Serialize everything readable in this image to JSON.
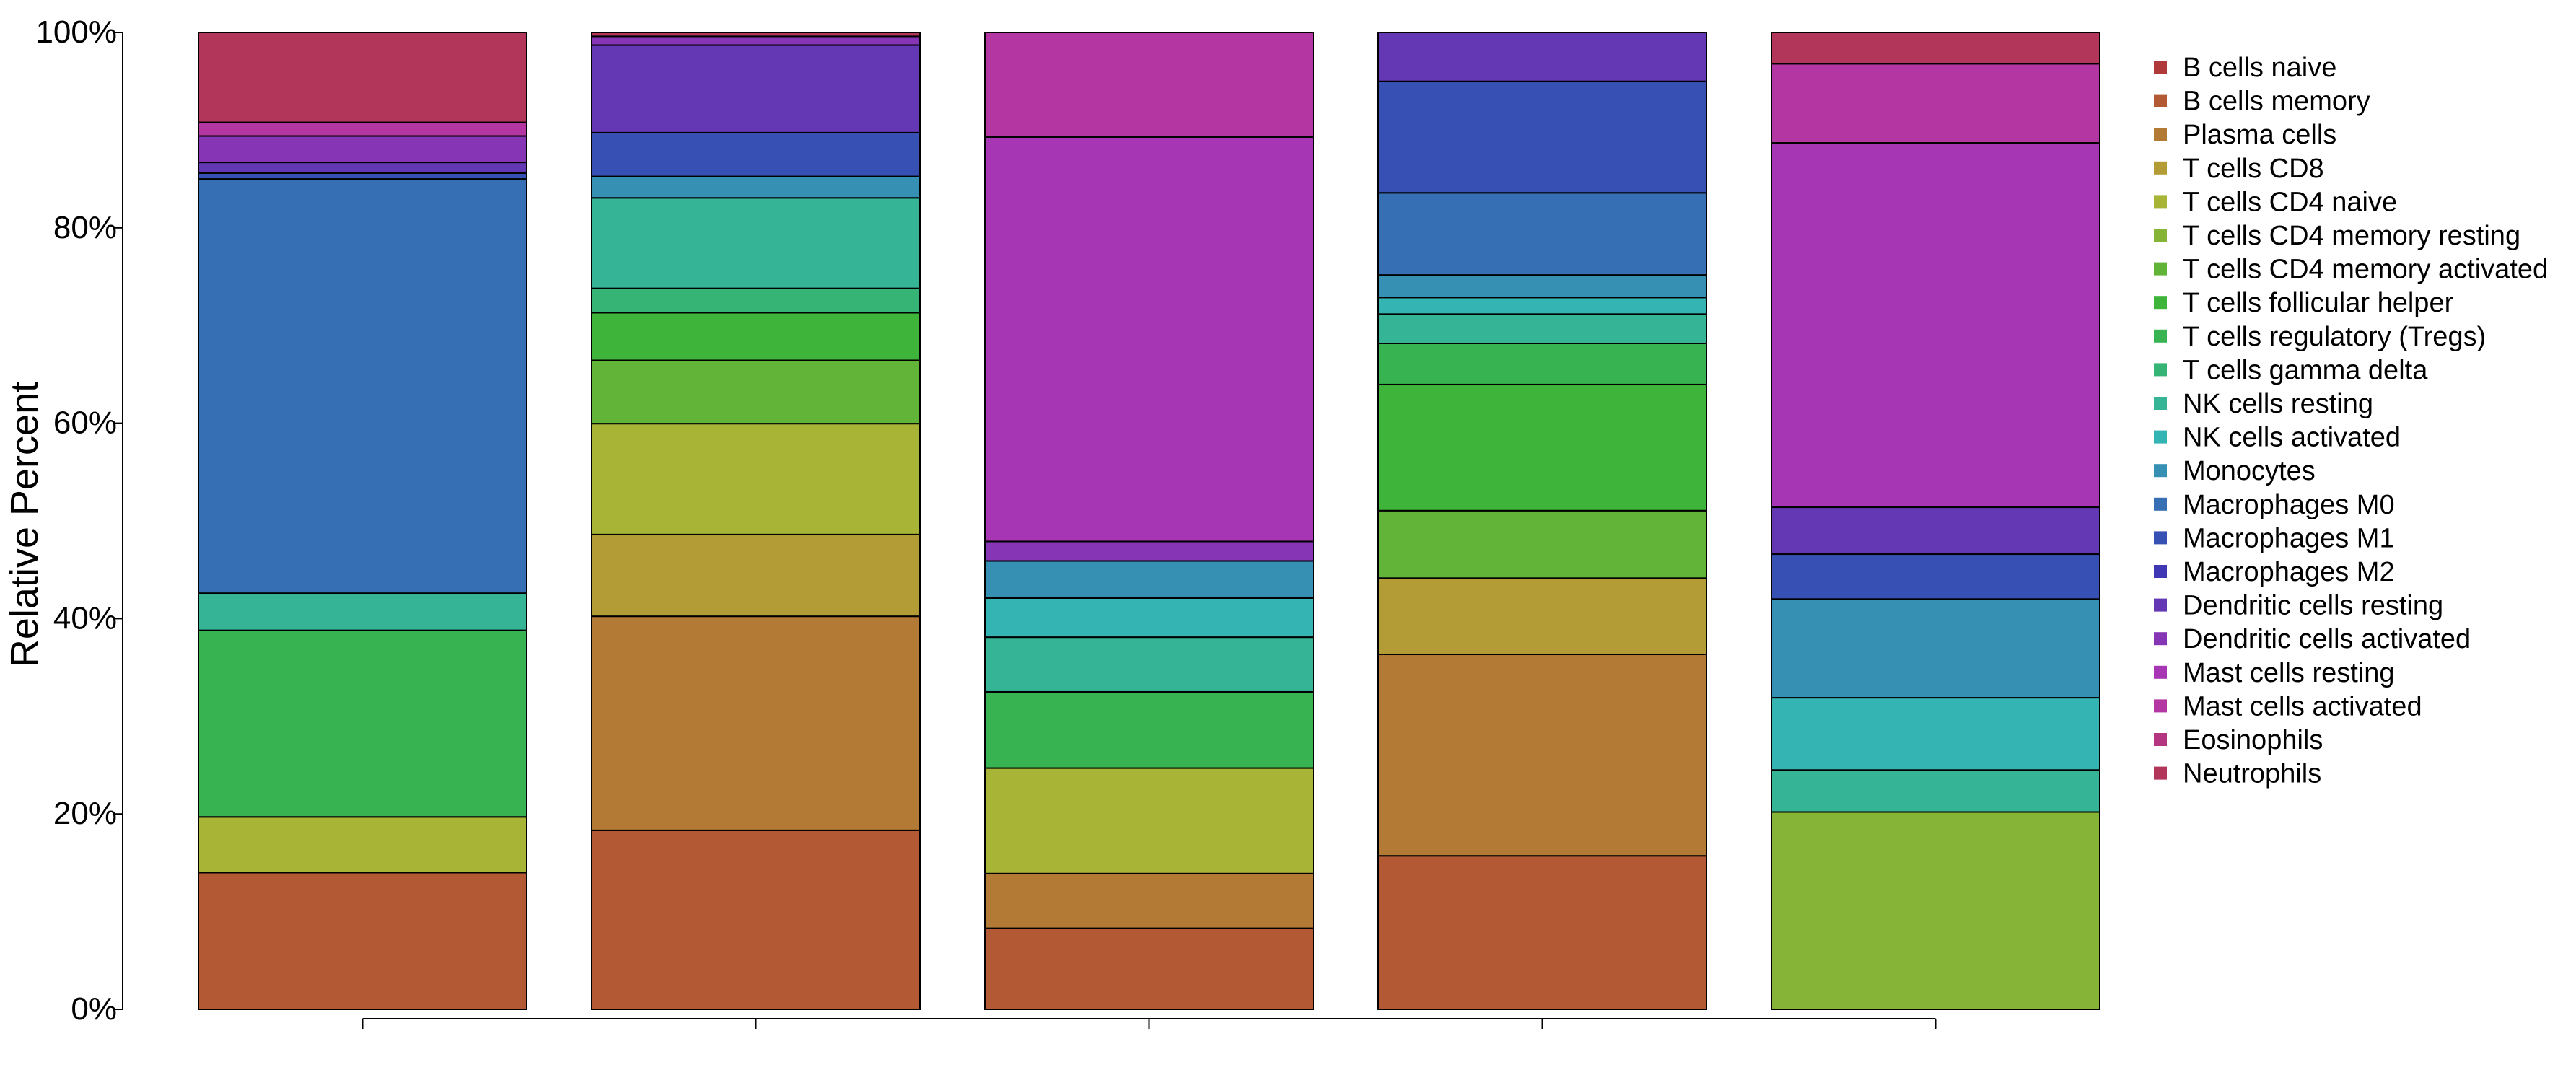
{
  "chart_data": {
    "type": "bar",
    "stacked": true,
    "normalized": true,
    "title": "",
    "xlabel": "",
    "ylabel": "Relative Percent",
    "ylim": [
      0,
      100
    ],
    "y_tick_labels": [
      "0%",
      "20%",
      "40%",
      "60%",
      "80%",
      "100%"
    ],
    "categories": [
      "",
      "",
      "",
      "",
      ""
    ],
    "legend_position": "right",
    "grid": false,
    "series": [
      {
        "name": "B cells naive",
        "color": "#B03A3A",
        "values": [
          0,
          0,
          0,
          0,
          0
        ]
      },
      {
        "name": "B cells memory",
        "color": "#B35A35",
        "values": [
          14,
          18.4,
          8.3,
          15.7,
          0
        ]
      },
      {
        "name": "Plasma cells",
        "color": "#B37A35",
        "values": [
          0,
          22,
          5.6,
          20.6,
          0
        ]
      },
      {
        "name": "T cells CD8",
        "color": "#B39C35",
        "values": [
          0,
          8.4,
          0,
          7.8,
          0
        ]
      },
      {
        "name": "T cells CD4 naive",
        "color": "#A8B436",
        "values": [
          5.7,
          11.4,
          10.8,
          0,
          0
        ]
      },
      {
        "name": "T cells CD4 memory resting",
        "color": "#86B436",
        "values": [
          0,
          0,
          0,
          0,
          20.2
        ]
      },
      {
        "name": "T cells CD4 memory activated",
        "color": "#62B438",
        "values": [
          0,
          6.5,
          0,
          6.9,
          0
        ]
      },
      {
        "name": "T cells follicular helper",
        "color": "#3EB43A",
        "values": [
          0,
          4.9,
          0,
          12.9,
          0
        ]
      },
      {
        "name": "T cells regulatory (Tregs)",
        "color": "#37B451",
        "values": [
          19.1,
          0,
          7.8,
          4.2,
          0
        ]
      },
      {
        "name": "T cells gamma delta",
        "color": "#35B475",
        "values": [
          0,
          2.5,
          0,
          0,
          0
        ]
      },
      {
        "name": "NK cells resting",
        "color": "#35B496",
        "values": [
          3.8,
          9.3,
          5.6,
          3,
          4.3
        ]
      },
      {
        "name": "NK cells activated",
        "color": "#35B4B4",
        "values": [
          0,
          0,
          4,
          1.7,
          7.4
        ]
      },
      {
        "name": "Monocytes",
        "color": "#3690B4",
        "values": [
          0,
          2.2,
          3.8,
          2.3,
          10.1
        ]
      },
      {
        "name": "Macrophages M0",
        "color": "#366FB4",
        "values": [
          42.4,
          0,
          0,
          8.4,
          0
        ]
      },
      {
        "name": "Macrophages M1",
        "color": "#3650B4",
        "values": [
          0.6,
          4.5,
          0,
          11.4,
          4.6
        ]
      },
      {
        "name": "Macrophages M2",
        "color": "#4037B4",
        "values": [
          0,
          0,
          0,
          0,
          0
        ]
      },
      {
        "name": "Dendritic cells resting",
        "color": "#6437B4",
        "values": [
          1.1,
          9,
          0,
          5,
          4.8
        ]
      },
      {
        "name": "Dendritic cells activated",
        "color": "#8636B4",
        "values": [
          2.7,
          0.9,
          2,
          0,
          0
        ]
      },
      {
        "name": "Mast cells resting",
        "color": "#A636B4",
        "values": [
          0,
          0,
          41.4,
          0,
          37.3
        ]
      },
      {
        "name": "Mast cells activated",
        "color": "#B436A2",
        "values": [
          1.4,
          0,
          10.7,
          0,
          8.1
        ]
      },
      {
        "name": "Eosinophils",
        "color": "#B43680",
        "values": [
          0,
          0,
          0,
          0,
          0
        ]
      },
      {
        "name": "Neutrophils",
        "color": "#B2365A",
        "values": [
          9.2,
          0.4,
          0,
          0,
          3.2
        ]
      }
    ]
  }
}
